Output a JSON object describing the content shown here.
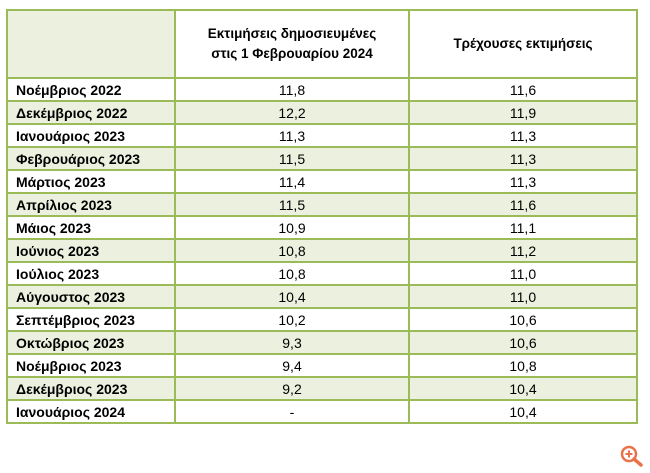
{
  "table": {
    "headers": {
      "col1": "",
      "col2_line1": "Εκτιμήσεις δημοσιευμένες",
      "col2_line2": "στις 1 Φεβρουαρίου 2024",
      "col3": "Τρέχουσες εκτιμήσεις"
    },
    "rows": [
      {
        "month": "Νοέμβριος 2022",
        "published": "11,8",
        "current": "11,6"
      },
      {
        "month": "Δεκέμβριος 2022",
        "published": "12,2",
        "current": "11,9"
      },
      {
        "month": "Ιανουάριος 2023",
        "published": "11,3",
        "current": "11,3"
      },
      {
        "month": "Φεβρουάριος 2023",
        "published": "11,5",
        "current": "11,3"
      },
      {
        "month": "Μάρτιος 2023",
        "published": "11,4",
        "current": "11,3"
      },
      {
        "month": "Απρίλιος 2023",
        "published": "11,5",
        "current": "11,6"
      },
      {
        "month": "Μάιος 2023",
        "published": "10,9",
        "current": "11,1"
      },
      {
        "month": "Ιούνιος 2023",
        "published": "10,8",
        "current": "11,2"
      },
      {
        "month": "Ιούλιος 2023",
        "published": "10,8",
        "current": "11,0"
      },
      {
        "month": "Αύγουστος 2023",
        "published": "10,4",
        "current": "11,0"
      },
      {
        "month": "Σεπτέμβριος 2023",
        "published": "10,2",
        "current": "10,6"
      },
      {
        "month": "Οκτώβριος 2023",
        "published": "9,3",
        "current": "10,6"
      },
      {
        "month": "Νοέμβριος 2023",
        "published": "9,4",
        "current": "10,8"
      },
      {
        "month": "Δεκέμβριος 2023",
        "published": "9,2",
        "current": "10,4"
      },
      {
        "month": "Ιανουάριος 2024",
        "published": "-",
        "current": "10,4"
      }
    ]
  },
  "icons": {
    "zoom": "zoom-in-icon",
    "zoom_color": "#e8734a"
  },
  "colors": {
    "border": "#9bbb59",
    "alt_row": "#ebf1de"
  }
}
